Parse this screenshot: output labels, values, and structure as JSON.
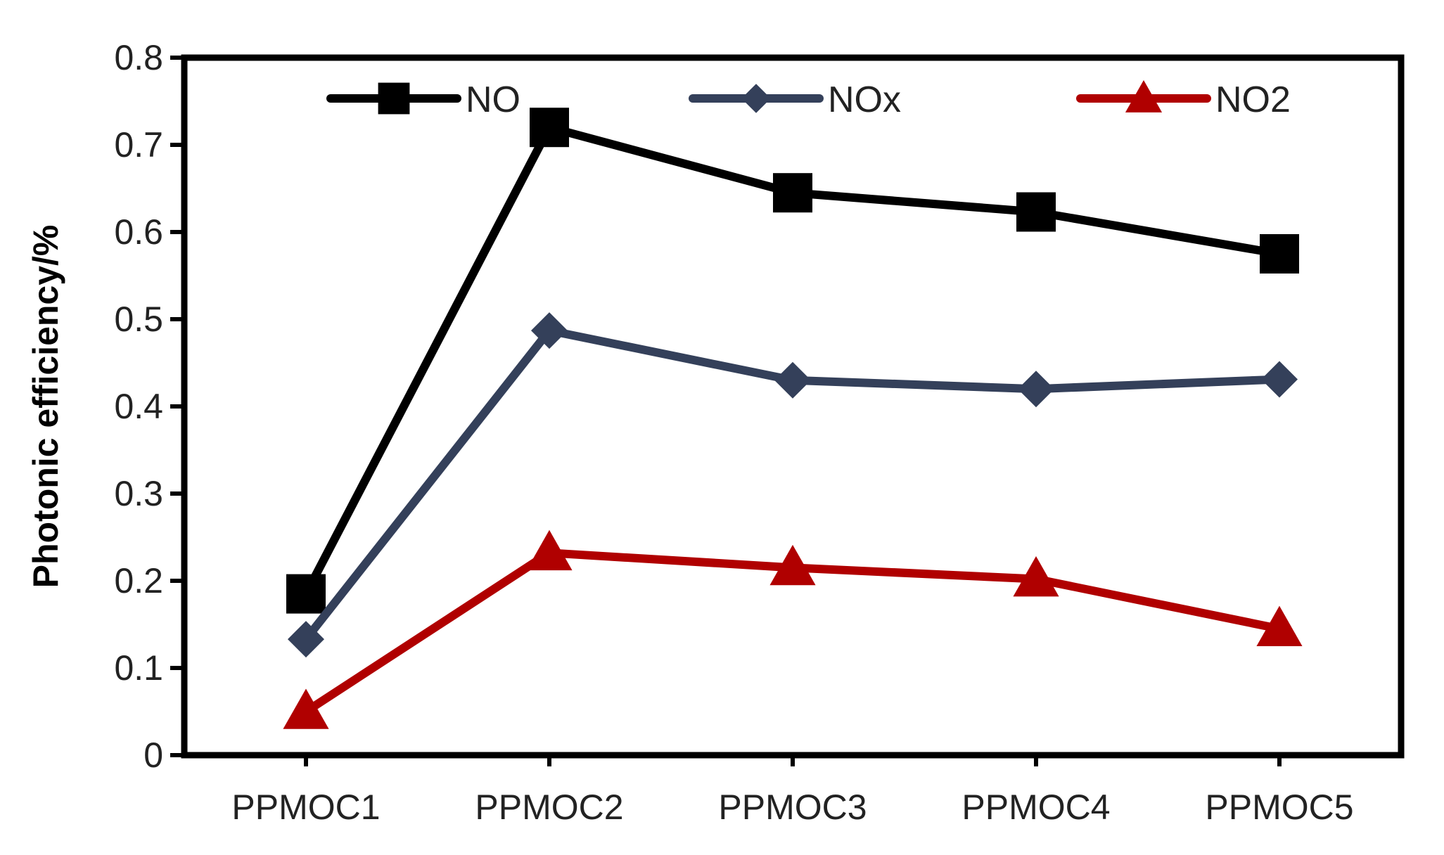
{
  "chart_data": {
    "type": "line",
    "title": "",
    "xlabel": "",
    "ylabel": "Photonic efficiency/%",
    "categories": [
      "PPMOC1",
      "PPMOC2",
      "PPMOC3",
      "PPMOC4",
      "PPMOC5"
    ],
    "ylim": [
      0,
      0.8
    ],
    "yticks": [
      0,
      0.1,
      0.2,
      0.3,
      0.4,
      0.5,
      0.6,
      0.7,
      0.8
    ],
    "ytick_labels": [
      "0",
      "0.1",
      "0.2",
      "0.3",
      "0.4",
      "0.5",
      "0.6",
      "0.7",
      "0.8"
    ],
    "grid": false,
    "legend_position": "top",
    "series": [
      {
        "name": "NO",
        "color": "#000000",
        "marker": "square",
        "values": [
          0.185,
          0.72,
          0.645,
          0.623,
          0.575
        ]
      },
      {
        "name": "NOx",
        "color": "#34405a",
        "marker": "diamond",
        "values": [
          0.133,
          0.487,
          0.43,
          0.42,
          0.431
        ]
      },
      {
        "name": "NO2",
        "color": "#b00000",
        "marker": "triangle",
        "values": [
          0.05,
          0.232,
          0.215,
          0.202,
          0.145
        ]
      }
    ]
  }
}
